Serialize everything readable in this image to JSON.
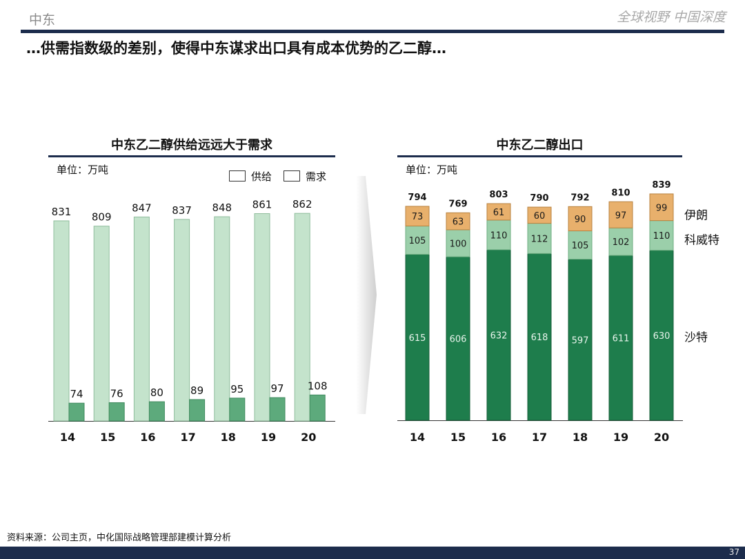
{
  "header": {
    "section_label": "中东",
    "slogan": "全球视野 中国深度",
    "headline": "…供需指数级的差别，使得中东谋求出口具有成本优势的乙二醇…"
  },
  "footer": {
    "source": "资料来源：公司主页，中化国际战略管理部建模计算分析",
    "page_number": "37"
  },
  "colors": {
    "navy": "#1c2c4c",
    "supply": "#c4e3cc",
    "demand": "#5daa7c",
    "saudi": "#1e7d4c",
    "kuwait": "#9bcfaa",
    "iran": "#e8b06c"
  },
  "chart_data": [
    {
      "type": "bar",
      "title": "中东乙二醇供给远远大于需求",
      "unit": "单位：万吨",
      "categories": [
        "14",
        "15",
        "16",
        "17",
        "18",
        "19",
        "20"
      ],
      "series": [
        {
          "name": "供给",
          "values": [
            831,
            809,
            847,
            837,
            848,
            861,
            862
          ]
        },
        {
          "name": "需求",
          "values": [
            74,
            76,
            80,
            89,
            95,
            97,
            108
          ]
        }
      ],
      "legend_position": "top-right"
    },
    {
      "type": "bar",
      "stacked": true,
      "title": "中东乙二醇出口",
      "unit": "单位：万吨",
      "categories": [
        "14",
        "15",
        "16",
        "17",
        "18",
        "19",
        "20"
      ],
      "totals": [
        794,
        769,
        803,
        790,
        792,
        810,
        839
      ],
      "series": [
        {
          "name": "沙特",
          "values": [
            615,
            606,
            632,
            618,
            597,
            611,
            630
          ]
        },
        {
          "name": "科威特",
          "values": [
            105,
            100,
            110,
            112,
            105,
            102,
            110
          ]
        },
        {
          "name": "伊朗",
          "values": [
            73,
            63,
            61,
            60,
            90,
            97,
            99
          ]
        }
      ],
      "legend_position": "right"
    }
  ]
}
